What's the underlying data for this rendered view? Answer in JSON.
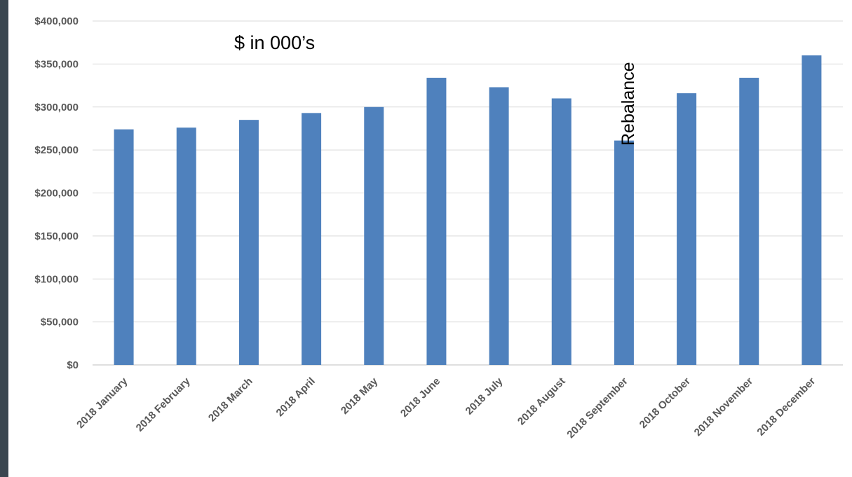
{
  "chart_data": {
    "type": "bar",
    "categories": [
      "2018 January",
      "2018 February",
      "2018 March",
      "2018 April",
      "2018 May",
      "2018 June",
      "2018 July",
      "2018 August",
      "2018 September",
      "2018 October",
      "2018 November",
      "2018 December"
    ],
    "values": [
      274000,
      276000,
      285000,
      293000,
      300000,
      334000,
      323000,
      310000,
      261000,
      316000,
      334000,
      360000
    ],
    "ylim": [
      0,
      400000
    ],
    "yticks": [
      0,
      50000,
      100000,
      150000,
      200000,
      250000,
      300000,
      350000,
      400000
    ],
    "ytick_labels": [
      "$0",
      "$50,000",
      "$100,000",
      "$150,000",
      "$200,000",
      "$250,000",
      "$300,000",
      "$350,000",
      "$400,000"
    ],
    "grid": true,
    "bar_color": "#4f81bd",
    "annotations": {
      "units_note": "$ in 000’s",
      "rebalance": "Rebalance"
    }
  }
}
